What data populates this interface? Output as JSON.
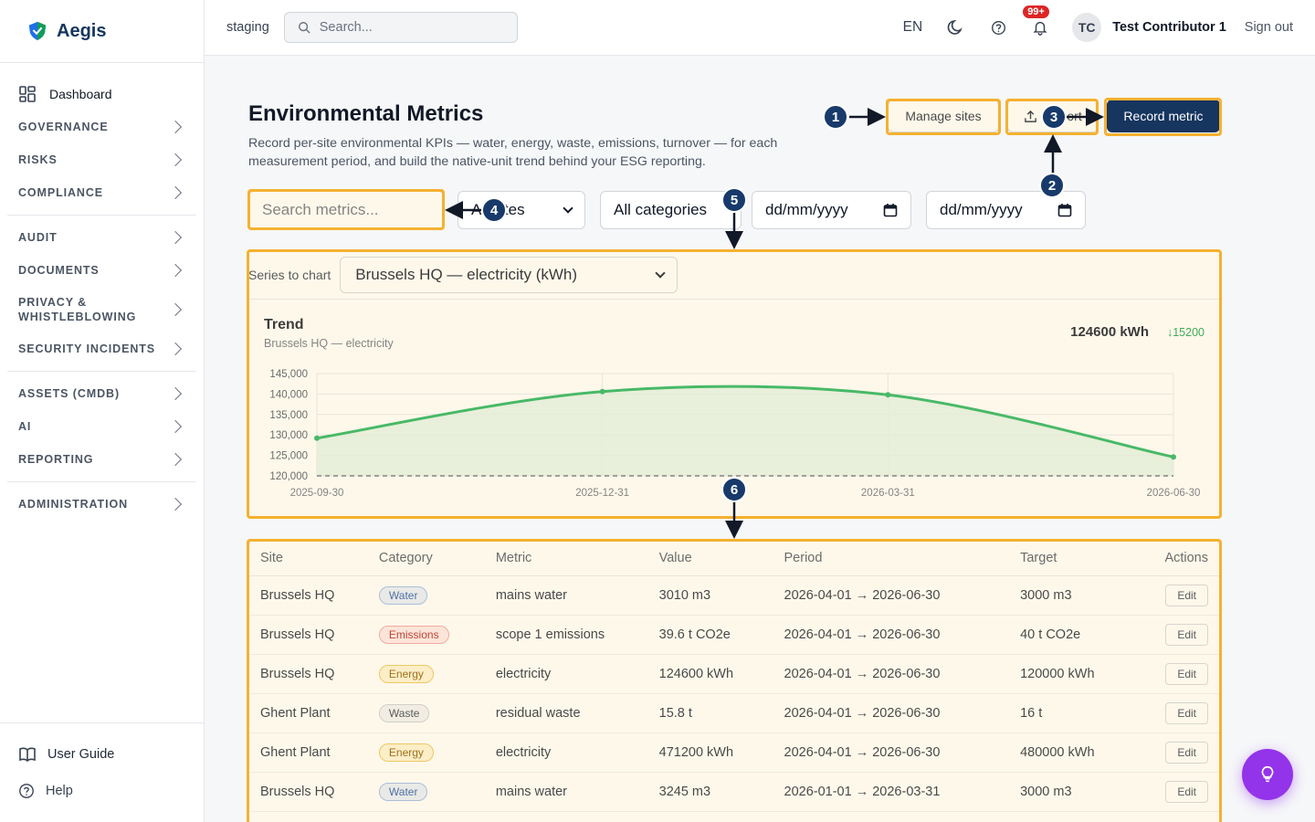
{
  "brand": {
    "name": "Aegis"
  },
  "sidebar": {
    "dashboard": "Dashboard",
    "items": [
      {
        "label": "GOVERNANCE"
      },
      {
        "label": "RISKS"
      },
      {
        "label": "COMPLIANCE"
      },
      {
        "label": "AUDIT"
      },
      {
        "label": "DOCUMENTS"
      },
      {
        "label": "PRIVACY & WHISTLEBLOWING"
      },
      {
        "label": "SECURITY INCIDENTS"
      },
      {
        "label": "ASSETS (CMDB)"
      },
      {
        "label": "AI"
      },
      {
        "label": "REPORTING"
      },
      {
        "label": "ADMINISTRATION"
      }
    ],
    "user_guide": "User Guide",
    "help": "Help"
  },
  "topbar": {
    "environment": "staging",
    "search_placeholder": "Search...",
    "language": "EN",
    "notifications_count": "99+",
    "avatar_initials": "TC",
    "user_name": "Test Contributor 1",
    "sign_out": "Sign out"
  },
  "page": {
    "title": "Environmental Metrics",
    "description": "Record per-site environmental KPIs — water, energy, waste, emissions, turnover — for each measurement period, and build the native-unit trend behind your ESG reporting.",
    "manage_sites": "Manage sites",
    "export": "Export",
    "record_metric": "Record metric"
  },
  "filters": {
    "search_placeholder": "Search metrics...",
    "sites": "All sites",
    "categories": "All categories",
    "date_from": "dd/mm/yyyy",
    "date_to": "dd/mm/yyyy"
  },
  "chart_panel": {
    "series_label": "Series to chart",
    "series_selected": "Brussels HQ — electricity (kWh)",
    "title": "Trend",
    "subtitle": "Brussels HQ — electricity",
    "latest_value": "124600 kWh",
    "delta": "↓15200"
  },
  "chart_data": {
    "type": "area",
    "x": [
      "2025-09-30",
      "2025-12-31",
      "2026-03-31",
      "2026-06-30"
    ],
    "series": [
      {
        "values": [
          129200,
          140600,
          139800,
          124600
        ]
      }
    ],
    "target": 120000,
    "ylim": [
      120000,
      145000
    ],
    "yticks": [
      "120,000",
      "125,000",
      "130,000",
      "135,000",
      "140,000",
      "145,000"
    ],
    "grid": true,
    "line_color": "#22b35e",
    "fill_color": "#dff3e6"
  },
  "table": {
    "headers": [
      "Site",
      "Category",
      "Metric",
      "Value",
      "Period",
      "Target",
      "Actions"
    ],
    "edit_label": "Edit",
    "rows": [
      {
        "site": "Brussels HQ",
        "category": "Water",
        "metric": "mains water",
        "value": "3010 m3",
        "period": "2026-04-01 → 2026-06-30",
        "target": "3000 m3"
      },
      {
        "site": "Brussels HQ",
        "category": "Emissions",
        "metric": "scope 1 emissions",
        "value": "39.6 t CO2e",
        "period": "2026-04-01 → 2026-06-30",
        "target": "40 t CO2e"
      },
      {
        "site": "Brussels HQ",
        "category": "Energy",
        "metric": "electricity",
        "value": "124600 kWh",
        "period": "2026-04-01 → 2026-06-30",
        "target": "120000 kWh"
      },
      {
        "site": "Ghent Plant",
        "category": "Waste",
        "metric": "residual waste",
        "value": "15.8 t",
        "period": "2026-04-01 → 2026-06-30",
        "target": "16 t"
      },
      {
        "site": "Ghent Plant",
        "category": "Energy",
        "metric": "electricity",
        "value": "471200 kWh",
        "period": "2026-04-01 → 2026-06-30",
        "target": "480000 kWh"
      },
      {
        "site": "Brussels HQ",
        "category": "Water",
        "metric": "mains water",
        "value": "3245 m3",
        "period": "2026-01-01 → 2026-03-31",
        "target": "3000 m3"
      }
    ]
  },
  "tag_colors": {
    "Water": {
      "bg": "#e6eefb",
      "border": "#9db7e8",
      "text": "#2b5aa8"
    },
    "Emissions": {
      "bg": "#fde8e8",
      "border": "#f1a3a3",
      "text": "#b42323"
    },
    "Energy": {
      "bg": "#fdf3d4",
      "border": "#ecc55a",
      "text": "#8a5a00"
    },
    "Waste": {
      "bg": "#f1f2f4",
      "border": "#c9cdd3",
      "text": "#374151"
    }
  },
  "annotations": [
    "1",
    "2",
    "3",
    "4",
    "5",
    "6"
  ]
}
